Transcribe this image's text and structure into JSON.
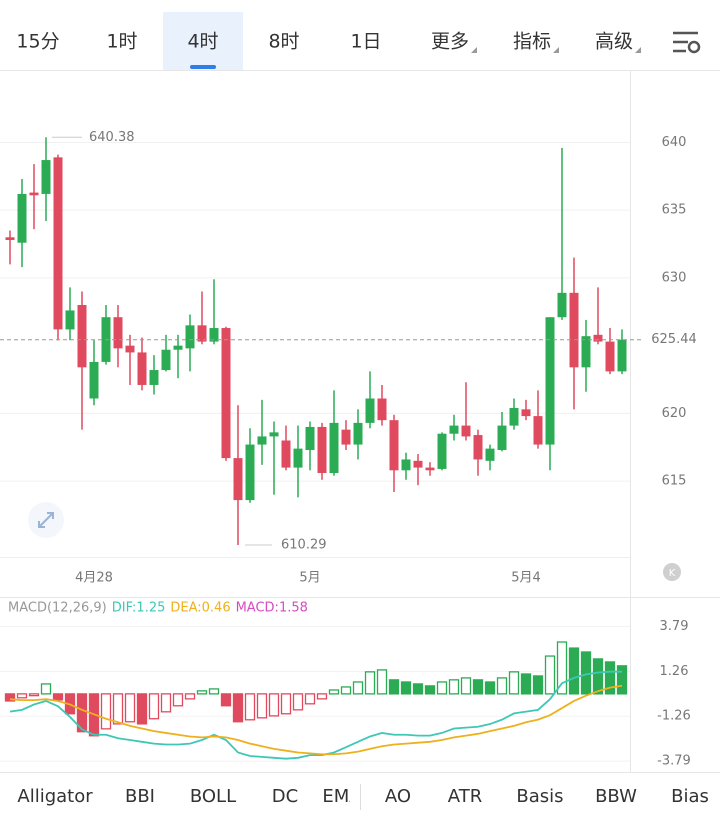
{
  "tabs": [
    "15分",
    "1时",
    "4时",
    "8时",
    "1日",
    "更多",
    "指标",
    "高级"
  ],
  "active_tab": 2,
  "badge": "K",
  "chart_data": [
    {
      "type": "candlestick",
      "x": [
        null,
        null,
        null,
        null,
        null,
        null,
        null,
        "4月28",
        null,
        null,
        null,
        null,
        null,
        null,
        null,
        null,
        null,
        null,
        null,
        null,
        null,
        null,
        null,
        null,
        null,
        "5月",
        null,
        null,
        null,
        null,
        null,
        null,
        null,
        null,
        null,
        null,
        null,
        null,
        null,
        null,
        null,
        null,
        null,
        "5月4",
        null,
        null,
        null,
        null,
        null,
        null,
        null,
        null
      ],
      "open": [
        633,
        632.6,
        636.3,
        636.2,
        638.9,
        626.2,
        628,
        621.1,
        623.8,
        627.1,
        625,
        624.5,
        622.1,
        623.2,
        624.7,
        624.8,
        626.5,
        625.3,
        626.3,
        616.7,
        613.6,
        617.7,
        618.3,
        618,
        616,
        617.3,
        619,
        615.6,
        618.8,
        617.7,
        619.3,
        621.1,
        619.5,
        615.8,
        616.5,
        616,
        615.9,
        618.5,
        619.1,
        618.4,
        616.5,
        617.3,
        619.1,
        620.3,
        619.8,
        617.7,
        627.1,
        628.9,
        623.4,
        625.8,
        625.3,
        623.1
      ],
      "high": [
        633.5,
        637.3,
        638.4,
        640.38,
        639.1,
        629.3,
        629,
        625.4,
        628,
        628,
        625.8,
        625.6,
        624.3,
        625.8,
        625.8,
        627.3,
        629,
        629.9,
        626.4,
        620.6,
        618.9,
        621,
        619.4,
        619.1,
        619.1,
        619.4,
        619.3,
        621.7,
        619.5,
        620.3,
        623.1,
        622.1,
        619.9,
        617.1,
        617,
        616.4,
        618.6,
        619.9,
        622.3,
        618.8,
        617.7,
        620.1,
        621.1,
        621,
        621.7,
        627.1,
        639.6,
        631.5,
        626.9,
        629.3,
        626.3,
        626.2
      ],
      "low": [
        631,
        630.8,
        633.6,
        634.2,
        625.4,
        625.4,
        618.8,
        620.6,
        623.6,
        623.4,
        622.1,
        621.7,
        621.4,
        623.1,
        622.6,
        623.1,
        625.1,
        625.1,
        616.5,
        610.29,
        613.4,
        616.2,
        614,
        615.8,
        613.8,
        615.8,
        615.1,
        615.4,
        617.3,
        616.6,
        618.9,
        619.1,
        614.2,
        615.1,
        614.7,
        615.4,
        615.8,
        618,
        618,
        615.4,
        615.8,
        617.2,
        618.8,
        619.5,
        617.4,
        615.8,
        626.9,
        620.3,
        621.6,
        625.1,
        622.9,
        622.9
      ],
      "close": [
        632.8,
        636.2,
        636.1,
        638.7,
        626.2,
        627.6,
        623.4,
        623.8,
        627.1,
        624.8,
        624.5,
        622.1,
        623.2,
        624.7,
        625,
        626.5,
        625.3,
        626.3,
        616.7,
        613.6,
        617.7,
        618.3,
        618.6,
        616,
        617.4,
        619,
        615.6,
        619.3,
        617.7,
        619.3,
        621.1,
        619.5,
        615.8,
        616.6,
        616,
        615.8,
        618.5,
        619.1,
        618.3,
        616.6,
        617.4,
        619.1,
        620.4,
        619.8,
        617.7,
        627.1,
        628.9,
        623.4,
        625.7,
        625.3,
        623.1,
        625.44
      ],
      "up_color": "#2bab54",
      "down_color": "#e04a5f",
      "ylim": [
        609.4,
        645.2
      ],
      "yticks": [
        615,
        620,
        630,
        635,
        640
      ],
      "grid": true
    },
    {
      "type": "macd",
      "title": "MACD(12,26,9)",
      "series": [
        {
          "name": "DIF:1.25",
          "color": "#3ec7b6",
          "values": [
            -1.0,
            -0.9,
            -0.6,
            -0.4,
            -0.7,
            -1.3,
            -2.0,
            -2.3,
            -2.3,
            -2.5,
            -2.6,
            -2.7,
            -2.8,
            -2.85,
            -2.85,
            -2.8,
            -2.6,
            -2.3,
            -2.6,
            -3.3,
            -3.5,
            -3.55,
            -3.6,
            -3.65,
            -3.6,
            -3.45,
            -3.45,
            -3.3,
            -3.0,
            -2.7,
            -2.4,
            -2.2,
            -2.3,
            -2.3,
            -2.35,
            -2.35,
            -2.2,
            -1.95,
            -1.9,
            -1.85,
            -1.7,
            -1.45,
            -1.1,
            -1.0,
            -0.9,
            -0.3,
            0.6,
            0.9,
            1.1,
            1.2,
            1.25,
            1.25
          ]
        },
        {
          "name": "DEA:0.46",
          "color": "#eeb01c",
          "values": [
            -0.3,
            -0.35,
            -0.35,
            -0.3,
            -0.4,
            -0.6,
            -0.9,
            -1.15,
            -1.4,
            -1.6,
            -1.8,
            -1.95,
            -2.1,
            -2.2,
            -2.3,
            -2.4,
            -2.45,
            -2.4,
            -2.45,
            -2.6,
            -2.8,
            -2.95,
            -3.1,
            -3.2,
            -3.3,
            -3.35,
            -3.4,
            -3.4,
            -3.35,
            -3.25,
            -3.1,
            -2.95,
            -2.85,
            -2.8,
            -2.75,
            -2.7,
            -2.6,
            -2.45,
            -2.35,
            -2.25,
            -2.1,
            -1.95,
            -1.8,
            -1.6,
            -1.45,
            -1.2,
            -0.8,
            -0.4,
            -0.1,
            0.15,
            0.35,
            0.46
          ]
        },
        {
          "name": "MACD:1.58",
          "color": "#d64cc0",
          "values": [
            -0.4,
            -0.22,
            -0.1,
            0.56,
            -0.34,
            -1.12,
            -2.13,
            -2.36,
            -1.97,
            -1.69,
            -1.57,
            -1.69,
            -1.4,
            -1.01,
            -0.67,
            -0.28,
            0.17,
            0.28,
            -0.67,
            -1.57,
            -1.46,
            -1.35,
            -1.24,
            -1.12,
            -0.9,
            -0.56,
            -0.28,
            0.22,
            0.39,
            0.67,
            1.24,
            1.35,
            0.79,
            0.67,
            0.56,
            0.45,
            0.67,
            0.79,
            0.9,
            0.79,
            0.67,
            0.9,
            1.24,
            1.12,
            1.01,
            2.13,
            2.92,
            2.58,
            2.36,
            1.97,
            1.8,
            1.58
          ]
        }
      ],
      "up_color": "#2bab54",
      "down_color": "#e04a5f",
      "title_color": "#999999",
      "ylim": [
        -4.4,
        5.4
      ],
      "yticks": [
        -3.79,
        -1.26,
        1.26,
        3.79
      ],
      "grid": true
    }
  ],
  "indicators": [
    "Alligator",
    "BBI",
    "BOLL",
    "DC",
    "EMA",
    "AO",
    "ATR",
    "Basis",
    "BBW",
    "Bias"
  ]
}
